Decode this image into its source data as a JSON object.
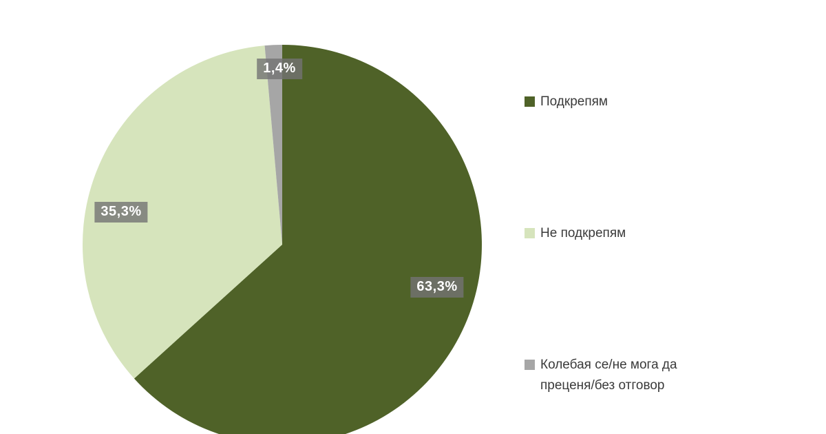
{
  "chart_data": {
    "type": "pie",
    "title": "",
    "unit": "%",
    "decimal_separator": ",",
    "start_angle_deg": 0,
    "direction": "clockwise",
    "legend_position": "right",
    "background_color": "#FFFFFF",
    "slices": [
      {
        "label": "Подкрепям",
        "value": 63.3,
        "display": "63,3%",
        "color": "#4F6228"
      },
      {
        "label": "Не подкрепям",
        "value": 35.3,
        "display": "35,3%",
        "color": "#D6E4BC"
      },
      {
        "label": "Колебая се/не мога да преценя/без отговор",
        "value": 1.4,
        "display": "1,4%",
        "color": "#A6A6A6"
      }
    ],
    "data_label_style": {
      "text_color": "#FFFFFF",
      "box_color": "#737373"
    },
    "legend_text_color": "#3A3A3A"
  }
}
